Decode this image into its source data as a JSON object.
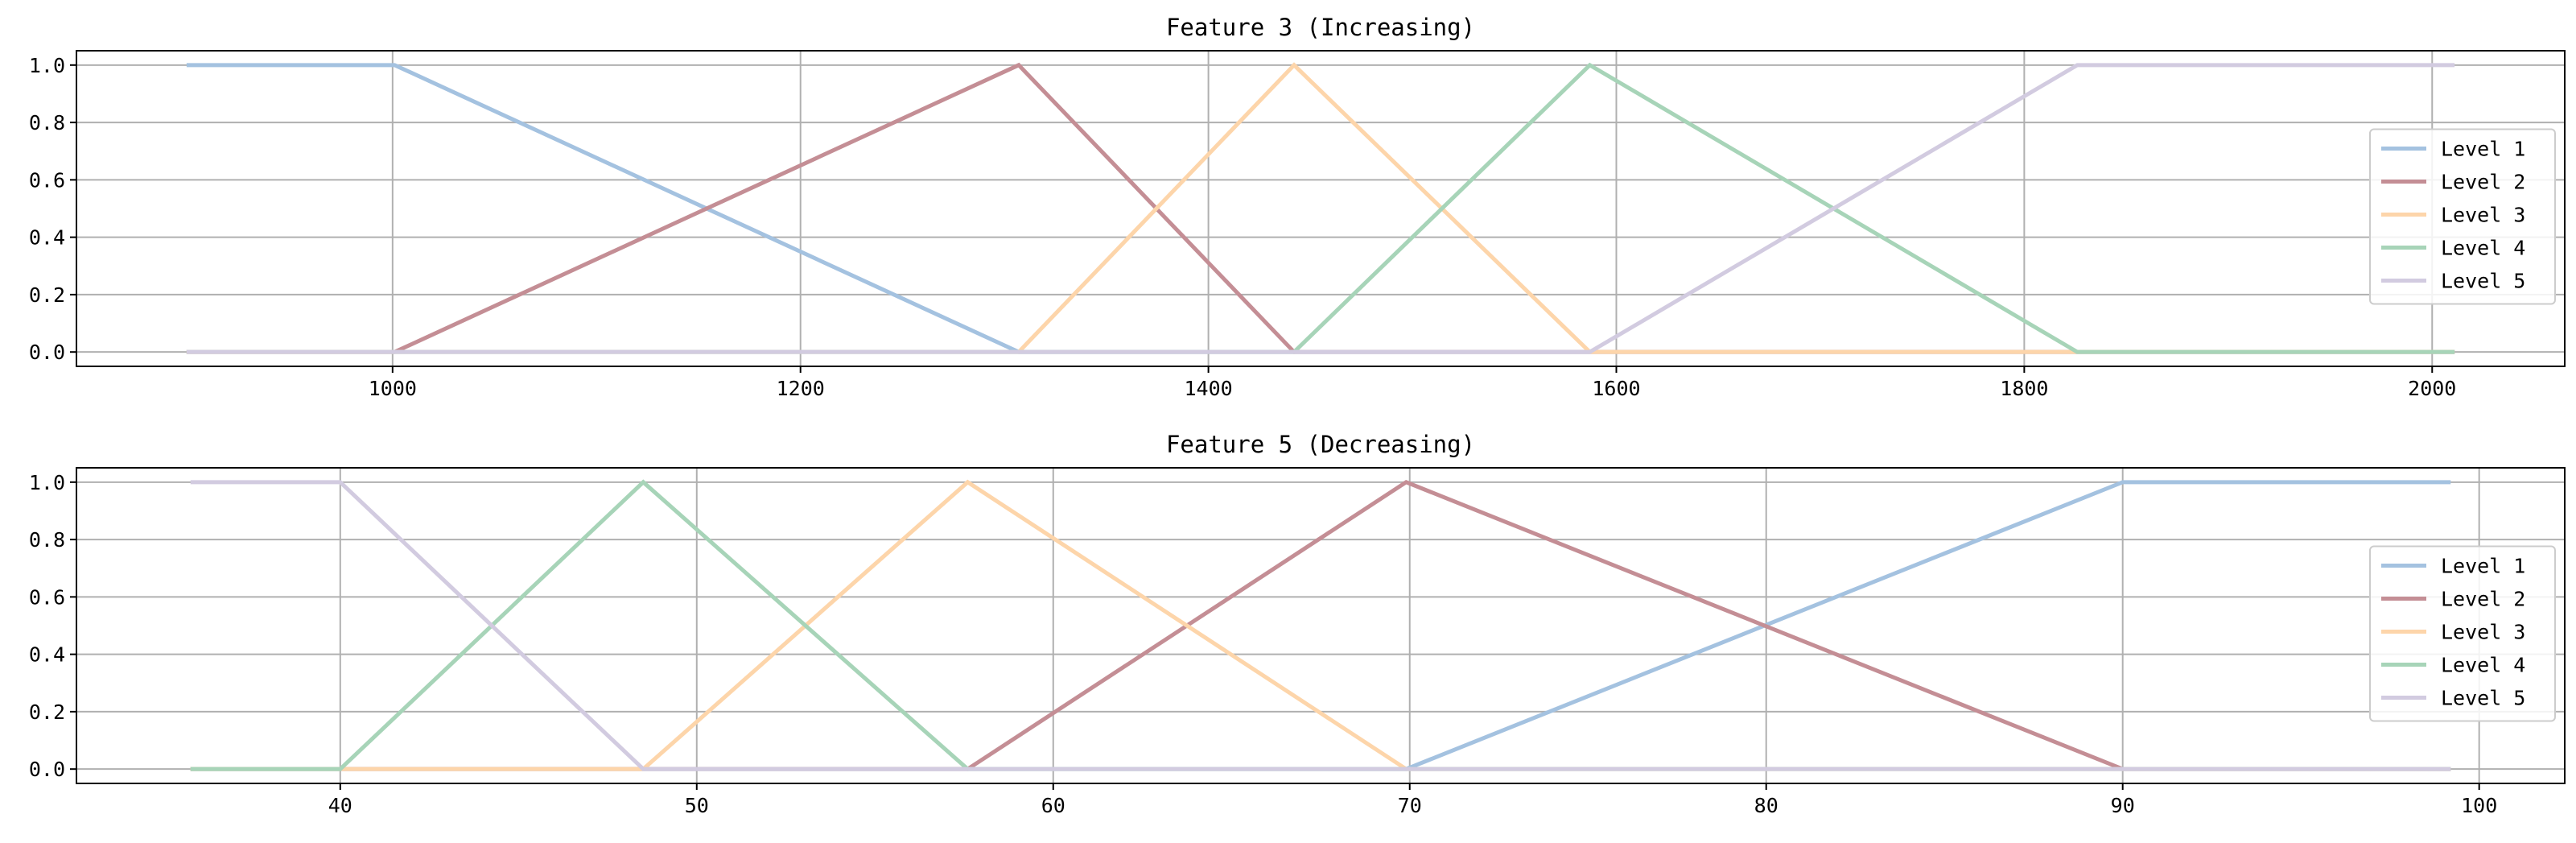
{
  "chart_data": [
    {
      "type": "line",
      "title": "Feature 3 (Increasing)",
      "xlim": [
        845,
        2065
      ],
      "ylim": [
        -0.05,
        1.05
      ],
      "xticks": [
        1000,
        1200,
        1400,
        1600,
        1800,
        2000
      ],
      "yticks": [
        0.0,
        0.2,
        0.4,
        0.6,
        0.8,
        1.0
      ],
      "ytick_labels": [
        "0.0",
        "0.2",
        "0.4",
        "0.6",
        "0.8",
        "1.0"
      ],
      "grid": true,
      "legend_position": "center-right",
      "series": [
        {
          "name": "Level 1",
          "color": "#a4c2e0",
          "x": [
            899,
            1001,
            1307,
            2011
          ],
          "y": [
            1,
            1,
            0,
            0
          ]
        },
        {
          "name": "Level 2",
          "color": "#c48e95",
          "x": [
            899,
            1001,
            1307,
            1442,
            2011
          ],
          "y": [
            0,
            0,
            1,
            0,
            0
          ]
        },
        {
          "name": "Level 3",
          "color": "#fdd5aa",
          "x": [
            899,
            1307,
            1442,
            1587,
            2011
          ],
          "y": [
            0,
            0,
            1,
            0,
            0
          ]
        },
        {
          "name": "Level 4",
          "color": "#a7d4b8",
          "x": [
            899,
            1442,
            1587,
            1826,
            2011
          ],
          "y": [
            0,
            0,
            1,
            0,
            0
          ]
        },
        {
          "name": "Level 5",
          "color": "#d2cbe0",
          "x": [
            899,
            1587,
            1826,
            2011
          ],
          "y": [
            0,
            0,
            1,
            1
          ]
        }
      ]
    },
    {
      "type": "line",
      "title": "Feature 5 (Decreasing)",
      "xlim": [
        32.6,
        102.4
      ],
      "ylim": [
        -0.05,
        1.05
      ],
      "xticks": [
        40,
        50,
        60,
        70,
        80,
        90,
        100
      ],
      "yticks": [
        0.0,
        0.2,
        0.4,
        0.6,
        0.8,
        1.0
      ],
      "ytick_labels": [
        "0.0",
        "0.2",
        "0.4",
        "0.6",
        "0.8",
        "1.0"
      ],
      "grid": true,
      "legend_position": "center-right",
      "series": [
        {
          "name": "Level 1",
          "color": "#a4c2e0",
          "x": [
            35.8,
            69.9,
            90.0,
            99.2
          ],
          "y": [
            0,
            0,
            1,
            1
          ]
        },
        {
          "name": "Level 2",
          "color": "#c48e95",
          "x": [
            35.8,
            57.6,
            69.9,
            90.0,
            99.2
          ],
          "y": [
            0,
            0,
            1,
            0,
            0
          ]
        },
        {
          "name": "Level 3",
          "color": "#fdd5aa",
          "x": [
            35.8,
            48.5,
            57.6,
            69.9,
            99.2
          ],
          "y": [
            0,
            0,
            1,
            0,
            0
          ]
        },
        {
          "name": "Level 4",
          "color": "#a7d4b8",
          "x": [
            35.8,
            40.0,
            48.5,
            57.6,
            99.2
          ],
          "y": [
            0,
            0,
            1,
            0,
            0
          ]
        },
        {
          "name": "Level 5",
          "color": "#d2cbe0",
          "x": [
            35.8,
            40.0,
            48.5,
            99.2
          ],
          "y": [
            1,
            1,
            0,
            0
          ]
        }
      ]
    }
  ]
}
